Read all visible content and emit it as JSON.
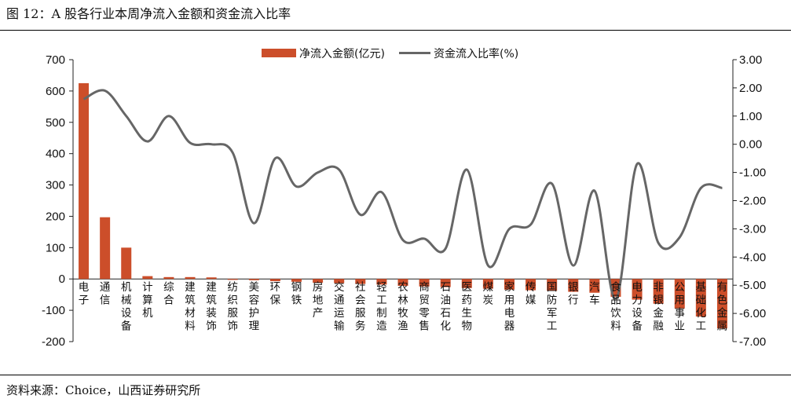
{
  "title": "图 12：A 股各行业本周净流入金额和资金流入比率",
  "source": "资料来源：Choice，山西证券研究所",
  "chart_data": {
    "type": "bar+line",
    "categories": [
      "电子",
      "通信",
      "机械设备",
      "计算机",
      "综合",
      "建筑材料",
      "建筑装饰",
      "纺织服饰",
      "美容护理",
      "环保",
      "钢铁",
      "房地产",
      "交通运输",
      "社会服务",
      "轻工制造",
      "农林牧渔",
      "商贸零售",
      "石油石化",
      "医药生物",
      "煤炭",
      "家用电器",
      "传媒",
      "国防军工",
      "银行",
      "汽车",
      "食品饮料",
      "电力设备",
      "非银金融",
      "公用事业",
      "基础化工",
      "有色金属"
    ],
    "series": [
      {
        "name": "净流入金额(亿元)",
        "type": "bar",
        "axis": "left",
        "color": "#cc4e2a",
        "values": [
          625,
          197,
          100,
          9,
          6,
          6,
          5,
          -3,
          -4,
          -7,
          -9,
          -12,
          -13,
          -16,
          -18,
          -22,
          -24,
          -26,
          -29,
          -31,
          -34,
          -36,
          -38,
          -41,
          -44,
          -57,
          -66,
          -79,
          -94,
          -120,
          -158
        ]
      },
      {
        "name": "资金流入比率(%)",
        "type": "line",
        "axis": "right",
        "color": "#666666",
        "values": [
          1.6,
          1.9,
          1.0,
          0.1,
          1.0,
          0.05,
          0.0,
          -0.3,
          -2.8,
          -0.5,
          -1.5,
          -1.0,
          -0.9,
          -2.5,
          -1.7,
          -3.4,
          -3.35,
          -3.7,
          -0.9,
          -4.3,
          -3.0,
          -2.85,
          -1.4,
          -4.3,
          -1.65,
          -5.5,
          -0.7,
          -3.5,
          -3.3,
          -1.55,
          -1.55
        ]
      }
    ],
    "y_left": {
      "min": -200,
      "max": 700,
      "step": 100,
      "ticks": [
        "-200",
        "-100",
        "0",
        "100",
        "200",
        "300",
        "400",
        "500",
        "600",
        "700"
      ]
    },
    "y_right": {
      "min": -7,
      "max": 3,
      "step": 1,
      "ticks": [
        "-7.00",
        "-6.00",
        "-5.00",
        "-4.00",
        "-3.00",
        "-2.00",
        "-1.00",
        "0.00",
        "1.00",
        "2.00",
        "3.00"
      ]
    },
    "grid": false,
    "legend_position": "top-center"
  }
}
